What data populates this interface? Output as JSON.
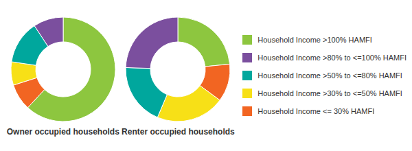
{
  "chart_data": [
    {
      "type": "pie",
      "title": "Owner occupied households",
      "categories": [
        "Household Income >100% HAMFI",
        "Household Income <= 30% HAMFI",
        "Household Income >30% to <=50% HAMFI",
        "Household Income >50% to <=80% HAMFI",
        "Household Income >80% to <=100% HAMFI"
      ],
      "values": [
        60,
        8,
        7,
        13,
        9
      ],
      "colors": [
        "#8dc63f",
        "#f26522",
        "#f7e017",
        "#00a79d",
        "#7b4f9e"
      ]
    },
    {
      "type": "pie",
      "title": "Renter occupied households",
      "categories": [
        "Household Income >100% HAMFI",
        "Household Income <= 30% HAMFI",
        "Household Income >30% to <=50% HAMFI",
        "Household Income >50% to <=80% HAMFI",
        "Household Income >80% to <=100% HAMFI"
      ],
      "values": [
        22,
        11,
        20,
        18,
        23
      ],
      "colors": [
        "#8dc63f",
        "#f26522",
        "#f7e017",
        "#00a79d",
        "#7b4f9e"
      ]
    }
  ]
}
